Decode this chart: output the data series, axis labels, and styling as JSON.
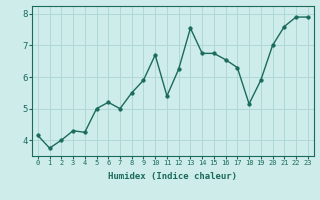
{
  "x": [
    0,
    1,
    2,
    3,
    4,
    5,
    6,
    7,
    8,
    9,
    10,
    11,
    12,
    13,
    14,
    15,
    16,
    17,
    18,
    19,
    20,
    21,
    22,
    23
  ],
  "y": [
    4.15,
    3.75,
    4.0,
    4.3,
    4.25,
    5.0,
    5.2,
    5.0,
    5.5,
    5.9,
    6.7,
    5.4,
    6.25,
    7.55,
    6.75,
    6.75,
    6.55,
    6.3,
    5.15,
    5.9,
    7.0,
    7.6,
    7.9,
    7.9
  ],
  "xlabel": "Humidex (Indice chaleur)",
  "ylim": [
    3.5,
    8.25
  ],
  "xlim": [
    -0.5,
    23.5
  ],
  "yticks": [
    4,
    5,
    6,
    7,
    8
  ],
  "xticks": [
    0,
    1,
    2,
    3,
    4,
    5,
    6,
    7,
    8,
    9,
    10,
    11,
    12,
    13,
    14,
    15,
    16,
    17,
    18,
    19,
    20,
    21,
    22,
    23
  ],
  "line_color": "#1a6b5a",
  "bg_color": "#ceecea",
  "grid_color": "#b0d8d5",
  "marker": "o",
  "marker_size": 2.5,
  "line_width": 1.0
}
